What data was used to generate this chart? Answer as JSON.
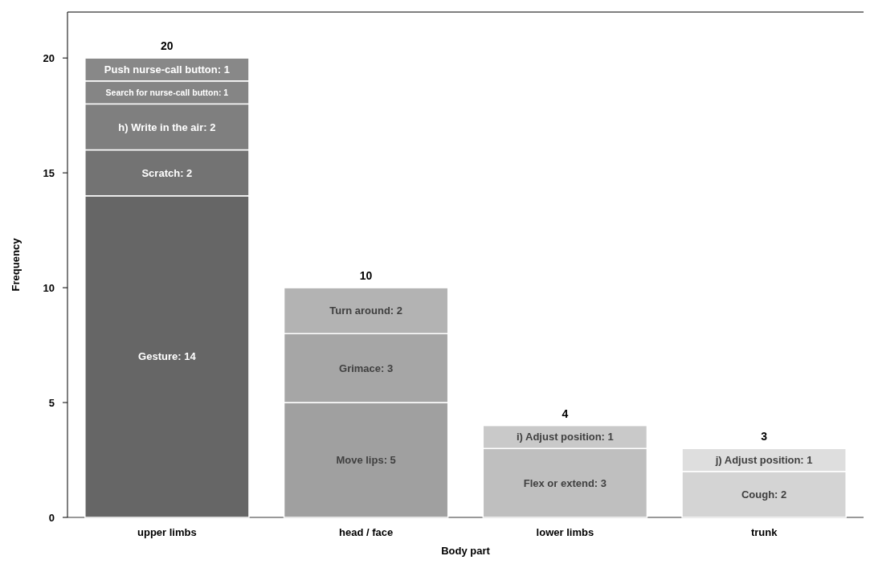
{
  "chart_data": {
    "type": "bar",
    "stacked": true,
    "xlabel": "Body part",
    "ylabel": "Frequency",
    "categories": [
      "upper limbs",
      "head / face",
      "lower limbs",
      "trunk"
    ],
    "ylim": [
      0,
      22
    ],
    "yticks": [
      0,
      5,
      10,
      15,
      20
    ],
    "grid": false,
    "totals": [
      "20",
      "10",
      "4",
      "3"
    ],
    "series": [
      {
        "values": [
          14,
          5,
          3,
          2
        ],
        "colors": [
          "#666666",
          "#a0a0a0",
          "#bfbfbf",
          "#d4d4d4"
        ],
        "value_labels": [
          "Gesture: 14",
          "Move lips: 5",
          "Flex or extend: 3",
          "Cough: 2"
        ]
      },
      {
        "values": [
          2,
          3,
          1,
          1
        ],
        "colors": [
          "#737373",
          "#a6a6a6",
          "#c9c9c9",
          "#dedede"
        ],
        "value_labels": [
          "Scratch: 2",
          "Grimace: 3",
          "i) Adjust position: 1",
          "j) Adjust position: 1"
        ]
      },
      {
        "values": [
          2,
          2,
          null,
          null
        ],
        "colors": [
          "#7f7f7f",
          "#b3b3b3",
          null,
          null
        ],
        "value_labels": [
          "h) Write in the air: 2",
          "Turn around: 2",
          null,
          null
        ]
      },
      {
        "values": [
          1,
          null,
          null,
          null
        ],
        "colors": [
          "#858585",
          null,
          null,
          null
        ],
        "value_labels": [
          "Search for nurse-call button: 1",
          null,
          null,
          null
        ]
      },
      {
        "values": [
          1,
          null,
          null,
          null
        ],
        "colors": [
          "#888888",
          null,
          null,
          null
        ],
        "value_labels": [
          "Push nurse-call button: 1",
          null,
          null,
          null
        ]
      }
    ]
  }
}
